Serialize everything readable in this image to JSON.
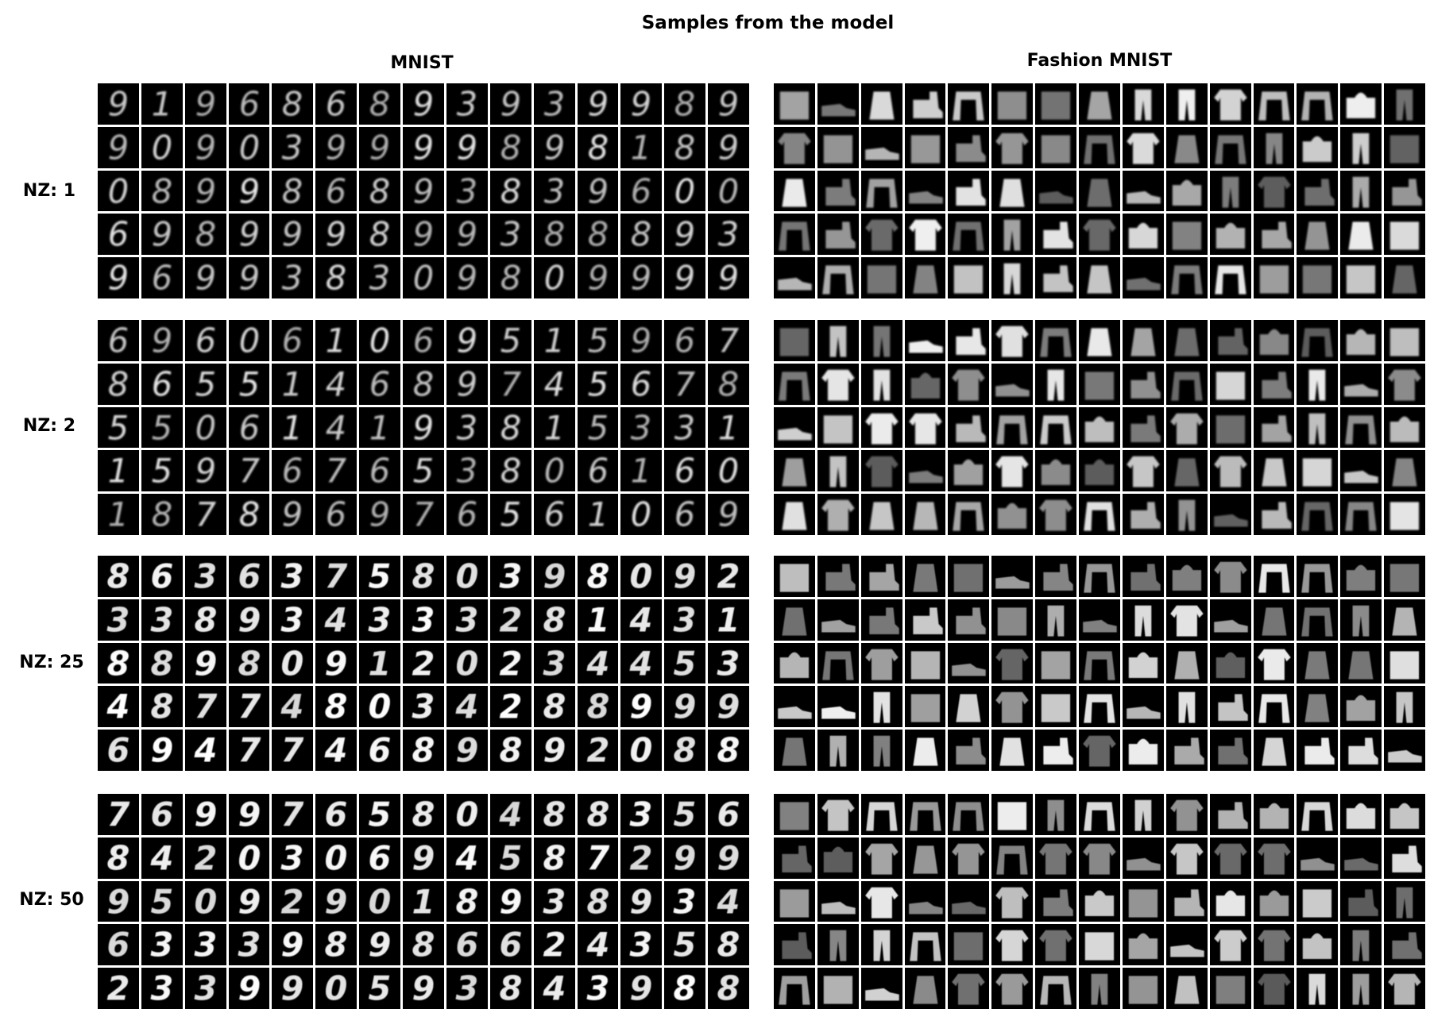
{
  "title": "Samples from the model",
  "columns": [
    {
      "key": "mnist",
      "label": "MNIST"
    },
    {
      "key": "fashion",
      "label": "Fashion MNIST"
    }
  ],
  "rows": [
    {
      "label": "NZ: 1"
    },
    {
      "label": "NZ: 2"
    },
    {
      "label": "NZ: 25"
    },
    {
      "label": "NZ: 50"
    }
  ],
  "grid": {
    "tile_rows": 5,
    "tile_cols": 15
  },
  "mnist_digits": [
    [
      "9",
      "1",
      "9",
      "6",
      "8",
      "6",
      "8",
      "9",
      "3",
      "9",
      "3",
      "9",
      "9",
      "8",
      "9",
      "9",
      "0",
      "9",
      "0",
      "3",
      "9",
      "9",
      "9",
      "9",
      "8",
      "9",
      "8",
      "1",
      "8",
      "9",
      "0",
      "8",
      "9",
      "9",
      "8",
      "6",
      "8",
      "9",
      "3",
      "8",
      "3",
      "9",
      "6",
      "0",
      "0",
      "6",
      "9",
      "8",
      "9",
      "9",
      "9",
      "8",
      "9",
      "9",
      "3",
      "8",
      "8",
      "8",
      "9",
      "3",
      "9",
      "6",
      "9",
      "9",
      "3",
      "8",
      "3",
      "0",
      "9",
      "8",
      "0",
      "9",
      "9",
      "9",
      "9"
    ],
    [
      "6",
      "9",
      "6",
      "0",
      "6",
      "1",
      "0",
      "6",
      "9",
      "5",
      "1",
      "5",
      "9",
      "6",
      "7",
      "8",
      "6",
      "5",
      "5",
      "1",
      "4",
      "6",
      "8",
      "9",
      "7",
      "4",
      "5",
      "6",
      "7",
      "8",
      "5",
      "5",
      "0",
      "6",
      "1",
      "4",
      "1",
      "9",
      "3",
      "8",
      "1",
      "5",
      "3",
      "3",
      "1",
      "1",
      "5",
      "9",
      "7",
      "6",
      "7",
      "6",
      "5",
      "3",
      "8",
      "0",
      "6",
      "1",
      "6",
      "0",
      "1",
      "8",
      "7",
      "8",
      "9",
      "6",
      "9",
      "7",
      "6",
      "5",
      "6",
      "1",
      "0",
      "6",
      "9"
    ],
    [
      "8",
      "6",
      "3",
      "6",
      "3",
      "7",
      "5",
      "8",
      "0",
      "3",
      "9",
      "8",
      "0",
      "9",
      "2",
      "3",
      "3",
      "8",
      "9",
      "3",
      "4",
      "3",
      "3",
      "3",
      "2",
      "8",
      "1",
      "4",
      "3",
      "1",
      "8",
      "8",
      "9",
      "8",
      "0",
      "9",
      "1",
      "2",
      "0",
      "2",
      "3",
      "4",
      "4",
      "5",
      "3",
      "4",
      "8",
      "7",
      "7",
      "4",
      "8",
      "0",
      "3",
      "4",
      "2",
      "8",
      "8",
      "9",
      "9",
      "9",
      "6",
      "9",
      "4",
      "7",
      "7",
      "4",
      "6",
      "8",
      "9",
      "8",
      "9",
      "2",
      "0",
      "8",
      "8"
    ],
    [
      "7",
      "6",
      "9",
      "9",
      "7",
      "6",
      "5",
      "8",
      "0",
      "4",
      "8",
      "8",
      "3",
      "5",
      "6",
      "8",
      "4",
      "2",
      "0",
      "3",
      "0",
      "6",
      "9",
      "4",
      "5",
      "8",
      "7",
      "2",
      "9",
      "9",
      "9",
      "5",
      "0",
      "9",
      "2",
      "9",
      "0",
      "1",
      "8",
      "9",
      "3",
      "8",
      "9",
      "3",
      "4",
      "6",
      "3",
      "3",
      "3",
      "9",
      "8",
      "9",
      "8",
      "6",
      "6",
      "2",
      "4",
      "3",
      "5",
      "8",
      "2",
      "3",
      "3",
      "9",
      "9",
      "0",
      "5",
      "9",
      "3",
      "8",
      "4",
      "3",
      "9",
      "8",
      "8"
    ]
  ]
}
